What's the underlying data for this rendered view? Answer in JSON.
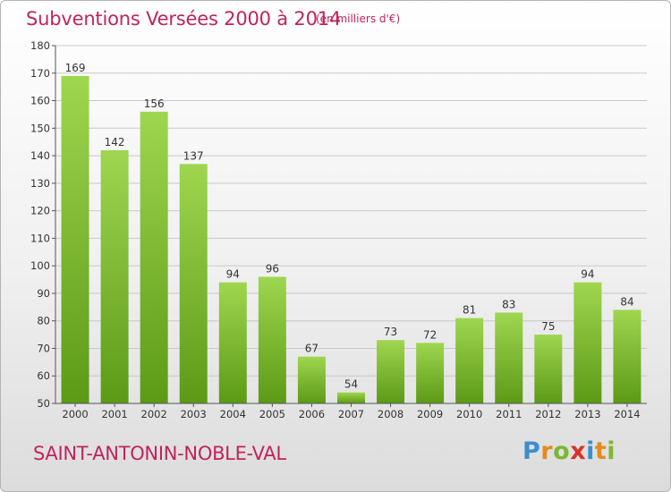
{
  "title": "Subventions Versées 2000 à 2014",
  "subtitle": "(en milliers d'€)",
  "commune": "SAINT-ANTONIN-NOBLE-VAL",
  "logo": {
    "text": "Proxiti",
    "letters": [
      {
        "char": "P",
        "color": "#3a8fd0"
      },
      {
        "char": "r",
        "color": "#e48b1c"
      },
      {
        "char": "o",
        "color": "#7cb82f"
      },
      {
        "char": "x",
        "color": "#d8332a"
      },
      {
        "char": "i",
        "color": "#3a8fd0"
      },
      {
        "char": "t",
        "color": "#e48b1c"
      },
      {
        "char": "i",
        "color": "#7cb82f"
      }
    ]
  },
  "colors": {
    "title": "#c0245c",
    "bar_top": "#9fd650",
    "bar_bottom": "#5c9a16",
    "grid": "#c8c8c8",
    "axis": "#555555",
    "text": "#333333"
  },
  "chart_data": {
    "type": "bar",
    "title": "Subventions Versées 2000 à 2014",
    "subtitle": "(en milliers d'€)",
    "xlabel": "",
    "ylabel": "",
    "categories": [
      "2000",
      "2001",
      "2002",
      "2003",
      "2004",
      "2005",
      "2006",
      "2007",
      "2008",
      "2009",
      "2010",
      "2011",
      "2012",
      "2013",
      "2014"
    ],
    "values": [
      169,
      142,
      156,
      137,
      94,
      96,
      67,
      54,
      73,
      72,
      81,
      83,
      75,
      94,
      84
    ],
    "ylim": [
      50,
      180
    ],
    "yticks": [
      50,
      60,
      70,
      80,
      90,
      100,
      110,
      120,
      130,
      140,
      150,
      160,
      170,
      180
    ],
    "grid": true,
    "data_labels": true
  }
}
